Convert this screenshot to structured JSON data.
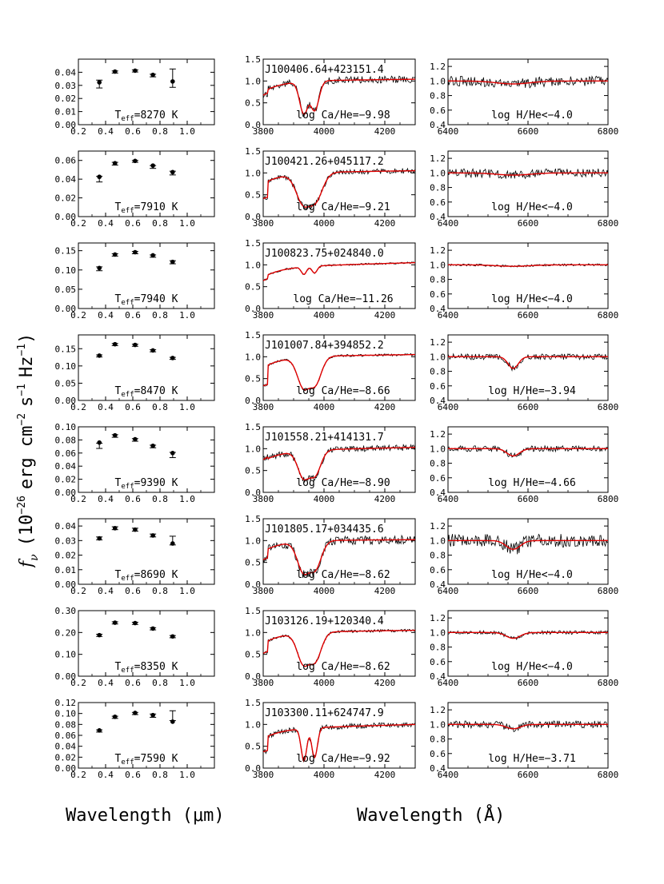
{
  "figure": {
    "ylabel_parts": [
      "f",
      "ν",
      "(10",
      "−26",
      "erg cm",
      "−2",
      "s",
      "−1",
      "Hz",
      "−1",
      ")"
    ],
    "xlabel_left": "Wavelength (μm)",
    "xlabel_right": "Wavelength (Å)"
  },
  "chart_data": [
    {
      "type": "scatter",
      "row": 0,
      "panel": "sed",
      "xlabel": "",
      "ylabel": "",
      "xlim": [
        0.2,
        1.2
      ],
      "ylim": [
        0.0,
        0.05
      ],
      "xticks": [
        "0.2",
        "0.4",
        "0.6",
        "0.8",
        "1.0"
      ],
      "yticks": [
        "0.00",
        "0.01",
        "0.02",
        "0.03",
        "0.04"
      ],
      "annotation": "T_eff=8270 K",
      "series": [
        {
          "marker": "circle",
          "x": [
            0.354,
            0.469,
            0.617,
            0.748,
            0.893
          ],
          "y": [
            0.0323,
            0.0405,
            0.0412,
            0.038,
            0.033
          ]
        },
        {
          "marker": "errorbar",
          "x": [
            0.354,
            0.469,
            0.617,
            0.748,
            0.893
          ],
          "y": [
            0.031,
            0.0402,
            0.041,
            0.0375,
            0.0355
          ],
          "err": [
            0.003,
            0.0008,
            0.0008,
            0.001,
            0.007
          ]
        }
      ]
    },
    {
      "type": "line",
      "row": 0,
      "panel": "cak",
      "xlim": [
        3800,
        4300
      ],
      "ylim": [
        0.0,
        1.5
      ],
      "xticks": [
        "3800",
        "4000",
        "4200"
      ],
      "yticks": [
        "0.0",
        "0.5",
        "1.0",
        "1.5"
      ],
      "title": "J100406.64+423151.4",
      "annotation": "log Ca/He=−9.98",
      "trace": {
        "noise": 0.08,
        "depth": 0.75,
        "width": 20,
        "cont": 1.0,
        "slope": 0.04,
        "start": 0.9,
        "seed": 11
      }
    },
    {
      "type": "line",
      "row": 0,
      "panel": "halpha",
      "xlim": [
        6400,
        6800
      ],
      "ylim": [
        0.4,
        1.3
      ],
      "xticks": [
        "6400",
        "6600",
        "6800"
      ],
      "yticks": [
        "0.4",
        "0.6",
        "0.8",
        "1.0",
        "1.2"
      ],
      "annotation": "log H/He<−4.0",
      "trace": {
        "noise": 0.07,
        "depth": 0.04,
        "width": 60,
        "cont": 1.0,
        "seed": 12
      }
    },
    {
      "type": "scatter",
      "row": 1,
      "panel": "sed",
      "xlim": [
        0.2,
        1.2
      ],
      "ylim": [
        0.0,
        0.07
      ],
      "xticks": [
        "0.2",
        "0.4",
        "0.6",
        "0.8",
        "1.0"
      ],
      "yticks": [
        "0.00",
        "0.02",
        "0.04",
        "0.06"
      ],
      "annotation": "T_eff=7910 K",
      "series": [
        {
          "marker": "circle",
          "x": [
            0.354,
            0.469,
            0.617,
            0.748,
            0.893
          ],
          "y": [
            0.0425,
            0.057,
            0.0595,
            0.0545,
            0.0475
          ]
        },
        {
          "marker": "errorbar",
          "x": [
            0.354,
            0.469,
            0.617,
            0.748,
            0.893
          ],
          "y": [
            0.04,
            0.0565,
            0.059,
            0.053,
            0.0465
          ],
          "err": [
            0.003,
            0.0015,
            0.001,
            0.0015,
            0.002
          ]
        }
      ]
    },
    {
      "type": "line",
      "row": 1,
      "panel": "cak",
      "xlim": [
        3800,
        4300
      ],
      "ylim": [
        0.0,
        1.5
      ],
      "xticks": [
        "3800",
        "4000",
        "4200"
      ],
      "yticks": [
        "0.0",
        "0.5",
        "1.0",
        "1.5"
      ],
      "title": "J100421.26+045117.2",
      "annotation": "log Ca/He=−9.21",
      "trace": {
        "noise": 0.06,
        "depth": 0.7,
        "width": 35,
        "cont": 1.0,
        "slope": 0.05,
        "start": 0.55,
        "seed": 21
      }
    },
    {
      "type": "line",
      "row": 1,
      "panel": "halpha",
      "xlim": [
        6400,
        6800
      ],
      "ylim": [
        0.4,
        1.3
      ],
      "xticks": [
        "6400",
        "6600",
        "6800"
      ],
      "yticks": [
        "0.4",
        "0.6",
        "0.8",
        "1.0",
        "1.2"
      ],
      "annotation": "log H/He<−4.0",
      "trace": {
        "noise": 0.06,
        "depth": 0.03,
        "width": 60,
        "cont": 1.0,
        "seed": 22
      }
    },
    {
      "type": "scatter",
      "row": 2,
      "panel": "sed",
      "xlim": [
        0.2,
        1.2
      ],
      "ylim": [
        0.0,
        0.17
      ],
      "xticks": [
        "0.2",
        "0.4",
        "0.6",
        "0.8",
        "1.0"
      ],
      "yticks": [
        "0.00",
        "0.05",
        "0.10",
        "0.15"
      ],
      "annotation": "T_eff=7940 K",
      "series": [
        {
          "marker": "circle",
          "x": [
            0.354,
            0.469,
            0.617,
            0.748,
            0.893
          ],
          "y": [
            0.105,
            0.14,
            0.146,
            0.138,
            0.121
          ]
        },
        {
          "marker": "errorbar",
          "x": [
            0.354,
            0.469,
            0.617,
            0.748,
            0.893
          ],
          "y": [
            0.103,
            0.139,
            0.145,
            0.136,
            0.12
          ],
          "err": [
            0.005,
            0.003,
            0.003,
            0.003,
            0.004
          ]
        }
      ]
    },
    {
      "type": "line",
      "row": 2,
      "panel": "cak",
      "xlim": [
        3800,
        4300
      ],
      "ylim": [
        0.0,
        1.5
      ],
      "xticks": [
        "3800",
        "4000",
        "4200"
      ],
      "yticks": [
        "0.0",
        "0.5",
        "1.0",
        "1.5"
      ],
      "title": "J100823.75+024840.0",
      "annotation": "log Ca/He=−11.26",
      "trace": {
        "noise": 0.02,
        "depth": 0.18,
        "width": 12,
        "cont": 0.95,
        "slope": 0.1,
        "start": 0.85,
        "seed": 31
      }
    },
    {
      "type": "line",
      "row": 2,
      "panel": "halpha",
      "xlim": [
        6400,
        6800
      ],
      "ylim": [
        0.4,
        1.3
      ],
      "xticks": [
        "6400",
        "6600",
        "6800"
      ],
      "yticks": [
        "0.4",
        "0.6",
        "0.8",
        "1.0",
        "1.2"
      ],
      "annotation": "log H/He<−4.0",
      "trace": {
        "noise": 0.015,
        "depth": 0.02,
        "width": 60,
        "cont": 1.0,
        "seed": 32
      }
    },
    {
      "type": "scatter",
      "row": 3,
      "panel": "sed",
      "xlim": [
        0.2,
        1.2
      ],
      "ylim": [
        0.0,
        0.19
      ],
      "xticks": [
        "0.2",
        "0.4",
        "0.6",
        "0.8",
        "1.0"
      ],
      "yticks": [
        "0.00",
        "0.05",
        "0.10",
        "0.15"
      ],
      "annotation": "T_eff=8470 K",
      "series": [
        {
          "marker": "circle",
          "x": [
            0.354,
            0.469,
            0.617,
            0.748,
            0.893
          ],
          "y": [
            0.13,
            0.163,
            0.161,
            0.145,
            0.123
          ]
        },
        {
          "marker": "errorbar",
          "x": [
            0.354,
            0.469,
            0.617,
            0.748,
            0.893
          ],
          "y": [
            0.129,
            0.162,
            0.16,
            0.144,
            0.122
          ],
          "err": [
            0.003,
            0.003,
            0.003,
            0.003,
            0.003
          ]
        }
      ]
    },
    {
      "type": "line",
      "row": 3,
      "panel": "cak",
      "xlim": [
        3800,
        4300
      ],
      "ylim": [
        0.0,
        1.5
      ],
      "xticks": [
        "3800",
        "4000",
        "4200"
      ],
      "yticks": [
        "0.0",
        "0.5",
        "1.0",
        "1.5"
      ],
      "title": "J101007.84+394852.2",
      "annotation": "log Ca/He=−8.66",
      "trace": {
        "noise": 0.025,
        "depth": 0.7,
        "width": 30,
        "cont": 1.0,
        "slope": 0.05,
        "start": 0.45,
        "seed": 41
      }
    },
    {
      "type": "line",
      "row": 3,
      "panel": "halpha",
      "xlim": [
        6400,
        6800
      ],
      "ylim": [
        0.4,
        1.3
      ],
      "xticks": [
        "6400",
        "6600",
        "6800"
      ],
      "yticks": [
        "0.4",
        "0.6",
        "0.8",
        "1.0",
        "1.2"
      ],
      "annotation": "log H/He=−3.94",
      "trace": {
        "noise": 0.04,
        "depth": 0.16,
        "width": 18,
        "cont": 1.0,
        "seed": 42
      }
    },
    {
      "type": "scatter",
      "row": 4,
      "panel": "sed",
      "xlim": [
        0.2,
        1.2
      ],
      "ylim": [
        0.0,
        0.1
      ],
      "xticks": [
        "0.2",
        "0.4",
        "0.6",
        "0.8",
        "1.0"
      ],
      "yticks": [
        "0.00",
        "0.02",
        "0.04",
        "0.06",
        "0.08",
        "0.10"
      ],
      "annotation": "T_eff=9390 K",
      "series": [
        {
          "marker": "circle",
          "x": [
            0.354,
            0.469,
            0.617,
            0.748,
            0.893
          ],
          "y": [
            0.076,
            0.087,
            0.081,
            0.071,
            0.06
          ]
        },
        {
          "marker": "errorbar",
          "x": [
            0.354,
            0.469,
            0.617,
            0.748,
            0.893
          ],
          "y": [
            0.071,
            0.086,
            0.08,
            0.07,
            0.057
          ],
          "err": [
            0.004,
            0.002,
            0.002,
            0.002,
            0.004
          ]
        }
      ]
    },
    {
      "type": "line",
      "row": 4,
      "panel": "cak",
      "xlim": [
        3800,
        4300
      ],
      "ylim": [
        0.0,
        1.5
      ],
      "xticks": [
        "3800",
        "4000",
        "4200"
      ],
      "yticks": [
        "0.0",
        "0.5",
        "1.0",
        "1.5"
      ],
      "title": "J101558.21+414131.7",
      "annotation": "log Ca/He=−8.90",
      "trace": {
        "noise": 0.07,
        "depth": 0.65,
        "width": 28,
        "cont": 0.95,
        "slope": 0.08,
        "start": 1.0,
        "seed": 51
      }
    },
    {
      "type": "line",
      "row": 4,
      "panel": "halpha",
      "xlim": [
        6400,
        6800
      ],
      "ylim": [
        0.4,
        1.3
      ],
      "xticks": [
        "6400",
        "6600",
        "6800"
      ],
      "yticks": [
        "0.4",
        "0.6",
        "0.8",
        "1.0",
        "1.2"
      ],
      "annotation": "log H/He=−4.66",
      "trace": {
        "noise": 0.04,
        "depth": 0.1,
        "width": 22,
        "cont": 1.0,
        "seed": 52
      }
    },
    {
      "type": "scatter",
      "row": 5,
      "panel": "sed",
      "xlim": [
        0.2,
        1.2
      ],
      "ylim": [
        0.0,
        0.045
      ],
      "xticks": [
        "0.2",
        "0.4",
        "0.6",
        "0.8",
        "1.0"
      ],
      "yticks": [
        "0.00",
        "0.01",
        "0.02",
        "0.03",
        "0.04"
      ],
      "annotation": "T_eff=8690 K",
      "series": [
        {
          "marker": "circle",
          "x": [
            0.354,
            0.469,
            0.617,
            0.748,
            0.893
          ],
          "y": [
            0.0315,
            0.0385,
            0.0375,
            0.0335,
            0.028
          ]
        },
        {
          "marker": "errorbar",
          "x": [
            0.354,
            0.469,
            0.617,
            0.748,
            0.893
          ],
          "y": [
            0.0315,
            0.0385,
            0.0375,
            0.0335,
            0.03
          ],
          "err": [
            0.001,
            0.001,
            0.001,
            0.001,
            0.003
          ]
        }
      ]
    },
    {
      "type": "line",
      "row": 5,
      "panel": "cak",
      "xlim": [
        3800,
        4300
      ],
      "ylim": [
        0.0,
        1.5
      ],
      "xticks": [
        "3800",
        "4000",
        "4200"
      ],
      "yticks": [
        "0.0",
        "0.5",
        "1.0",
        "1.5"
      ],
      "title": "J101805.17+034435.6",
      "annotation": "log Ca/He=−8.62",
      "trace": {
        "noise": 0.1,
        "depth": 0.72,
        "width": 30,
        "cont": 1.0,
        "slope": 0.02,
        "start": 0.75,
        "seed": 61
      }
    },
    {
      "type": "line",
      "row": 5,
      "panel": "halpha",
      "xlim": [
        6400,
        6800
      ],
      "ylim": [
        0.4,
        1.3
      ],
      "xticks": [
        "6400",
        "6600",
        "6800"
      ],
      "yticks": [
        "0.4",
        "0.6",
        "0.8",
        "1.0",
        "1.2"
      ],
      "annotation": "log H/He<−4.0",
      "trace": {
        "noise": 0.09,
        "depth": 0.12,
        "width": 25,
        "cont": 1.0,
        "seed": 62
      }
    },
    {
      "type": "scatter",
      "row": 6,
      "panel": "sed",
      "xlim": [
        0.2,
        1.2
      ],
      "ylim": [
        0.0,
        0.3
      ],
      "xticks": [
        "0.2",
        "0.4",
        "0.6",
        "0.8",
        "1.0"
      ],
      "yticks": [
        "0.00",
        "0.10",
        "0.20",
        "0.30"
      ],
      "annotation": "T_eff=8350 K",
      "series": [
        {
          "marker": "circle",
          "x": [
            0.354,
            0.469,
            0.617,
            0.748,
            0.893
          ],
          "y": [
            0.188,
            0.245,
            0.243,
            0.218,
            0.182
          ]
        },
        {
          "marker": "errorbar",
          "x": [
            0.354,
            0.469,
            0.617,
            0.748,
            0.893
          ],
          "y": [
            0.187,
            0.244,
            0.242,
            0.217,
            0.181
          ],
          "err": [
            0.005,
            0.005,
            0.005,
            0.005,
            0.005
          ]
        }
      ]
    },
    {
      "type": "line",
      "row": 6,
      "panel": "cak",
      "xlim": [
        3800,
        4300
      ],
      "ylim": [
        0.0,
        1.5
      ],
      "xticks": [
        "3800",
        "4000",
        "4200"
      ],
      "yticks": [
        "0.0",
        "0.5",
        "1.0",
        "1.5"
      ],
      "title": "J103126.19+120340.4",
      "annotation": "log Ca/He=−8.62",
      "trace": {
        "noise": 0.03,
        "depth": 0.72,
        "width": 30,
        "cont": 1.0,
        "slope": 0.05,
        "start": 0.7,
        "seed": 71
      }
    },
    {
      "type": "line",
      "row": 6,
      "panel": "halpha",
      "xlim": [
        6400,
        6800
      ],
      "ylim": [
        0.4,
        1.3
      ],
      "xticks": [
        "6400",
        "6600",
        "6800"
      ],
      "yticks": [
        "0.4",
        "0.6",
        "0.8",
        "1.0",
        "1.2"
      ],
      "annotation": "log H/He<−4.0",
      "trace": {
        "noise": 0.025,
        "depth": 0.08,
        "width": 25,
        "cont": 1.0,
        "seed": 72
      }
    },
    {
      "type": "scatter",
      "row": 7,
      "panel": "sed",
      "xlim": [
        0.2,
        1.2
      ],
      "ylim": [
        0.0,
        0.12
      ],
      "xticks": [
        "0.2",
        "0.4",
        "0.6",
        "0.8",
        "1.0"
      ],
      "yticks": [
        "0.00",
        "0.02",
        "0.04",
        "0.06",
        "0.08",
        "0.10",
        "0.12"
      ],
      "annotation": "T_eff=7590 K",
      "series": [
        {
          "marker": "circle",
          "x": [
            0.354,
            0.469,
            0.617,
            0.748,
            0.893
          ],
          "y": [
            0.069,
            0.094,
            0.101,
            0.097,
            0.085
          ]
        },
        {
          "marker": "errorbar",
          "x": [
            0.354,
            0.469,
            0.617,
            0.748,
            0.893
          ],
          "y": [
            0.068,
            0.093,
            0.1,
            0.096,
            0.096
          ],
          "err": [
            0.002,
            0.002,
            0.002,
            0.003,
            0.009
          ]
        }
      ]
    },
    {
      "type": "line",
      "row": 7,
      "panel": "cak",
      "xlim": [
        3800,
        4300
      ],
      "ylim": [
        0.0,
        1.5
      ],
      "xticks": [
        "3800",
        "4000",
        "4200"
      ],
      "yticks": [
        "0.0",
        "0.5",
        "1.0",
        "1.5"
      ],
      "title": "J103300.11+624747.9",
      "annotation": "log Ca/He=−9.92",
      "trace": {
        "noise": 0.06,
        "depth": 0.82,
        "width": 13,
        "cont": 0.9,
        "slope": 0.1,
        "start": 0.5,
        "seed": 81
      }
    },
    {
      "type": "line",
      "row": 7,
      "panel": "halpha",
      "xlim": [
        6400,
        6800
      ],
      "ylim": [
        0.4,
        1.3
      ],
      "xticks": [
        "6400",
        "6600",
        "6800"
      ],
      "yticks": [
        "0.4",
        "0.6",
        "0.8",
        "1.0",
        "1.2"
      ],
      "annotation": "log H/He=−3.71",
      "trace": {
        "noise": 0.05,
        "depth": 0.06,
        "width": 25,
        "cont": 1.0,
        "seed": 82
      }
    }
  ]
}
